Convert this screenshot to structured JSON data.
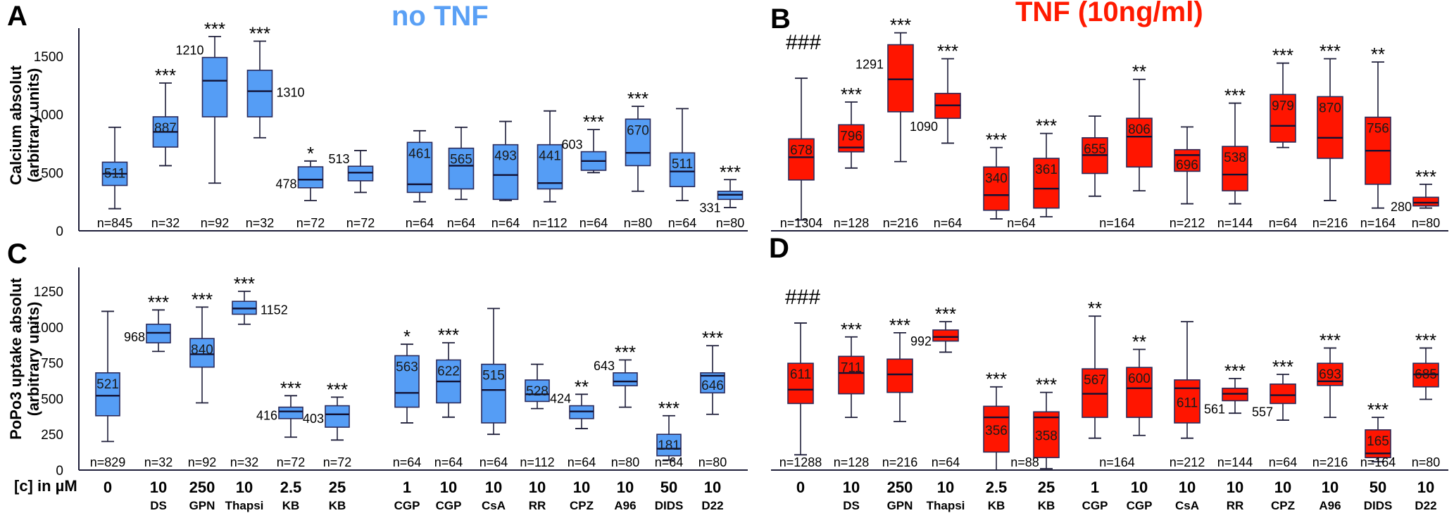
{
  "figure": {
    "condition_titles": [
      {
        "text": "no TNF",
        "color": "#5aa0f5"
      },
      {
        "text": "TNF (10ng/ml)",
        "color": "#ff1a00"
      }
    ],
    "x_axis_row_label": "[c] in µM",
    "groups": [
      {
        "conc": "0",
        "drug": ""
      },
      {
        "conc": "10",
        "drug": "DS"
      },
      {
        "conc": "250",
        "drug": "GPN"
      },
      {
        "conc": "10",
        "drug": "Thapsi"
      },
      {
        "conc": "2.5",
        "drug": "KB"
      },
      {
        "conc": "25",
        "drug": "KB"
      },
      {
        "conc": "1",
        "drug": "CGP"
      },
      {
        "conc": "10",
        "drug": "CGP"
      },
      {
        "conc": "10",
        "drug": "CsA"
      },
      {
        "conc": "10",
        "drug": "RR"
      },
      {
        "conc": "10",
        "drug": "CPZ"
      },
      {
        "conc": "10",
        "drug": "A96"
      },
      {
        "conc": "50",
        "drug": "DIDS"
      },
      {
        "conc": "10",
        "drug": "D22"
      }
    ],
    "colors": {
      "no_tnf_box": "#559df5",
      "tnf_box": "#ff1500",
      "whisker": "#1f1f3a",
      "median": "#111133"
    }
  },
  "chart_data": [
    {
      "panel": "A",
      "type": "boxplot",
      "condition": "no TNF",
      "ylabel": [
        "Calcium absolut",
        "(arbitrary units)"
      ],
      "ylim": [
        0,
        1700
      ],
      "yticks": [
        0,
        500,
        1000,
        1500
      ],
      "show_yaxis": true,
      "color": "#559df5",
      "boxes": [
        {
          "q1": 390,
          "median": 490,
          "q3": 590,
          "whislo": 190,
          "whishi": 890,
          "label": "511",
          "label_pos": "inside",
          "n": "n=845",
          "sig": ""
        },
        {
          "q1": 720,
          "median": 850,
          "q3": 980,
          "whislo": 560,
          "whishi": 1270,
          "label": "887",
          "label_pos": "inside",
          "n": "n=32",
          "sig": "***"
        },
        {
          "q1": 980,
          "median": 1290,
          "q3": 1490,
          "whislo": 410,
          "whishi": 1670,
          "label": "1210",
          "label_pos": "left-top",
          "n": "n=92",
          "sig": "***"
        },
        {
          "q1": 980,
          "median": 1200,
          "q3": 1380,
          "whislo": 800,
          "whishi": 1630,
          "label": "1310",
          "label_pos": "right",
          "n": "n=32",
          "sig": "***"
        },
        {
          "q1": 370,
          "median": 440,
          "q3": 550,
          "whislo": 260,
          "whishi": 600,
          "label": "478",
          "label_pos": "left",
          "n": "n=72",
          "sig": "*"
        },
        {
          "q1": 430,
          "median": 500,
          "q3": 555,
          "whislo": 330,
          "whishi": 690,
          "label": "513",
          "label_pos": "left-top",
          "n": "n=72",
          "sig": ""
        },
        {
          "q1": 330,
          "median": 400,
          "q3": 760,
          "whislo": 250,
          "whishi": 860,
          "label": "461",
          "label_pos": "inside",
          "n": "n=64",
          "sig": ""
        },
        {
          "q1": 360,
          "median": 560,
          "q3": 710,
          "whislo": 270,
          "whishi": 890,
          "label": "565",
          "label_pos": "inside",
          "n": "n=64",
          "sig": ""
        },
        {
          "q1": 270,
          "median": 480,
          "q3": 740,
          "whislo": 260,
          "whishi": 940,
          "label": "493",
          "label_pos": "inside",
          "n": "n=64",
          "sig": ""
        },
        {
          "q1": 360,
          "median": 410,
          "q3": 740,
          "whislo": 250,
          "whishi": 1030,
          "label": "441",
          "label_pos": "inside",
          "n": "n=112",
          "sig": ""
        },
        {
          "q1": 520,
          "median": 600,
          "q3": 680,
          "whislo": 500,
          "whishi": 870,
          "label": "603",
          "label_pos": "left-top",
          "n": "n=64",
          "sig": "***"
        },
        {
          "q1": 560,
          "median": 670,
          "q3": 960,
          "whislo": 340,
          "whishi": 1070,
          "label": "670",
          "label_pos": "inside",
          "n": "n=80",
          "sig": "***"
        },
        {
          "q1": 380,
          "median": 510,
          "q3": 670,
          "whislo": 260,
          "whishi": 1050,
          "label": "511",
          "label_pos": "inside",
          "n": "n=64",
          "sig": ""
        },
        {
          "q1": 270,
          "median": 310,
          "q3": 340,
          "whislo": 200,
          "whishi": 440,
          "label": "331",
          "label_pos": "left-low",
          "n": "n=80",
          "sig": "***"
        }
      ]
    },
    {
      "panel": "B",
      "type": "boxplot",
      "condition": "TNF (10ng/ml)",
      "ylim": [
        0,
        1700
      ],
      "show_yaxis": false,
      "header_mark": "###",
      "color": "#ff1500",
      "boxes": [
        {
          "q1": 470,
          "median": 680,
          "q3": 850,
          "whislo": 100,
          "whishi": 1410,
          "label": "678",
          "label_pos": "inside",
          "n": "n=1304",
          "sig": ""
        },
        {
          "q1": 730,
          "median": 770,
          "q3": 980,
          "whislo": 580,
          "whishi": 1190,
          "label": "796",
          "label_pos": "inside",
          "n": "n=128",
          "sig": "***"
        },
        {
          "q1": 1100,
          "median": 1400,
          "q3": 1720,
          "whislo": 640,
          "whishi": 1830,
          "label": "1291",
          "label_pos": "left-high",
          "n": "n=216",
          "sig": "***"
        },
        {
          "q1": 1040,
          "median": 1160,
          "q3": 1270,
          "whislo": 810,
          "whishi": 1590,
          "label": "1090",
          "label_pos": "left-low",
          "n": "n=64",
          "sig": "***"
        },
        {
          "q1": 190,
          "median": 330,
          "q3": 590,
          "whislo": 110,
          "whishi": 770,
          "label": "340",
          "label_pos": "inside",
          "n": "",
          "sig": "***"
        },
        {
          "q1": 210,
          "median": 390,
          "q3": 670,
          "whislo": 130,
          "whishi": 900,
          "label": "361",
          "label_pos": "inside",
          "n": "n=64",
          "sig": "***"
        },
        {
          "q1": 530,
          "median": 700,
          "q3": 860,
          "whislo": 320,
          "whishi": 1060,
          "label": "655",
          "label_pos": "inside",
          "n": "",
          "sig": ""
        },
        {
          "q1": 590,
          "median": 870,
          "q3": 1040,
          "whislo": 370,
          "whishi": 1400,
          "label": "806",
          "label_pos": "inside",
          "n": "n=164",
          "sig": "**"
        },
        {
          "q1": 550,
          "median": 700,
          "q3": 750,
          "whislo": 250,
          "whishi": 960,
          "label": "696",
          "label_pos": "inside-low",
          "n": "n=212",
          "sig": ""
        },
        {
          "q1": 370,
          "median": 520,
          "q3": 780,
          "whislo": 250,
          "whishi": 1180,
          "label": "538",
          "label_pos": "inside",
          "n": "n=144",
          "sig": "***"
        },
        {
          "q1": 820,
          "median": 970,
          "q3": 1260,
          "whislo": 770,
          "whishi": 1550,
          "label": "979",
          "label_pos": "inside",
          "n": "n=64",
          "sig": "***"
        },
        {
          "q1": 670,
          "median": 860,
          "q3": 1240,
          "whislo": 280,
          "whishi": 1590,
          "label": "870",
          "label_pos": "inside",
          "n": "n=216",
          "sig": "***"
        },
        {
          "q1": 430,
          "median": 740,
          "q3": 1050,
          "whislo": 210,
          "whishi": 1560,
          "label": "756",
          "label_pos": "inside",
          "n": "n=164",
          "sig": "**"
        },
        {
          "q1": 230,
          "median": 260,
          "q3": 310,
          "whislo": 210,
          "whishi": 430,
          "label": "280",
          "label_pos": "left",
          "n": "n=80",
          "sig": "***"
        }
      ]
    },
    {
      "panel": "C",
      "type": "boxplot",
      "condition": "no TNF",
      "ylabel": [
        "PoPo3 uptake  absolut",
        "(arbitrary units)"
      ],
      "ylim": [
        0,
        1400
      ],
      "yticks": [
        0,
        250,
        500,
        750,
        1000,
        1250
      ],
      "show_yaxis": true,
      "color": "#559df5",
      "boxes": [
        {
          "q1": 380,
          "median": 520,
          "q3": 680,
          "whislo": 200,
          "whishi": 1110,
          "label": "521",
          "label_pos": "inside",
          "n": "n=829",
          "sig": ""
        },
        {
          "q1": 890,
          "median": 960,
          "q3": 1020,
          "whislo": 830,
          "whishi": 1120,
          "label": "968",
          "label_pos": "left",
          "n": "n=32",
          "sig": "***"
        },
        {
          "q1": 720,
          "median": 810,
          "q3": 920,
          "whislo": 470,
          "whishi": 1140,
          "label": "840",
          "label_pos": "inside",
          "n": "n=92",
          "sig": "***"
        },
        {
          "q1": 1090,
          "median": 1130,
          "q3": 1180,
          "whislo": 1020,
          "whishi": 1250,
          "label": "1152",
          "label_pos": "right",
          "n": "n=32",
          "sig": "***"
        },
        {
          "q1": 360,
          "median": 410,
          "q3": 440,
          "whislo": 230,
          "whishi": 520,
          "label": "416",
          "label_pos": "left",
          "n": "n=72",
          "sig": "***"
        },
        {
          "q1": 300,
          "median": 390,
          "q3": 450,
          "whislo": 210,
          "whishi": 510,
          "label": "403",
          "label_pos": "left",
          "n": "n=72",
          "sig": "***"
        },
        {
          "q1": 440,
          "median": 540,
          "q3": 800,
          "whislo": 330,
          "whishi": 880,
          "label": "563",
          "label_pos": "inside",
          "n": "n=64",
          "sig": "*"
        },
        {
          "q1": 470,
          "median": 620,
          "q3": 770,
          "whislo": 370,
          "whishi": 890,
          "label": "622",
          "label_pos": "inside",
          "n": "n=64",
          "sig": "***"
        },
        {
          "q1": 330,
          "median": 560,
          "q3": 740,
          "whislo": 250,
          "whishi": 1130,
          "label": "515",
          "label_pos": "inside",
          "n": "n=64",
          "sig": ""
        },
        {
          "q1": 480,
          "median": 530,
          "q3": 630,
          "whislo": 430,
          "whishi": 740,
          "label": "528",
          "label_pos": "inside",
          "n": "n=112",
          "sig": ""
        },
        {
          "q1": 360,
          "median": 410,
          "q3": 450,
          "whislo": 290,
          "whishi": 530,
          "label": "424",
          "label_pos": "left-top",
          "n": "n=64",
          "sig": "**"
        },
        {
          "q1": 590,
          "median": 620,
          "q3": 680,
          "whislo": 440,
          "whishi": 770,
          "label": "643",
          "label_pos": "left-top",
          "n": "n=80",
          "sig": "***"
        },
        {
          "q1": 100,
          "median": 150,
          "q3": 250,
          "whislo": 70,
          "whishi": 380,
          "label": "181",
          "label_pos": "inside",
          "n": "n=64",
          "sig": "***"
        },
        {
          "q1": 540,
          "median": 660,
          "q3": 680,
          "whislo": 390,
          "whishi": 870,
          "label": "646",
          "label_pos": "inside-low",
          "n": "n=80",
          "sig": "***"
        }
      ]
    },
    {
      "panel": "D",
      "type": "boxplot",
      "condition": "TNF (10ng/ml)",
      "ylim": [
        0,
        1400
      ],
      "show_yaxis": false,
      "header_mark": "###",
      "color": "#ff1500",
      "boxes": [
        {
          "q1": 480,
          "median": 580,
          "q3": 770,
          "whislo": 110,
          "whishi": 1060,
          "label": "611",
          "label_pos": "inside",
          "n": "n=1288",
          "sig": ""
        },
        {
          "q1": 550,
          "median": 700,
          "q3": 820,
          "whislo": 380,
          "whishi": 960,
          "label": "711",
          "label_pos": "inside",
          "n": "n=128",
          "sig": "***"
        },
        {
          "q1": 560,
          "median": 690,
          "q3": 800,
          "whislo": 350,
          "whishi": 990,
          "label": "",
          "label_pos": "inside",
          "n": "n=216",
          "sig": "***"
        },
        {
          "q1": 930,
          "median": 960,
          "q3": 1010,
          "whislo": 850,
          "whishi": 1070,
          "label": "992",
          "label_pos": "left",
          "n": "n=64",
          "sig": "***"
        },
        {
          "q1": 130,
          "median": 380,
          "q3": 460,
          "whislo": 0,
          "whishi": 600,
          "label": "356",
          "label_pos": "inside-low",
          "n": "",
          "sig": "***"
        },
        {
          "q1": 90,
          "median": 380,
          "q3": 420,
          "whislo": 10,
          "whishi": 560,
          "label": "358",
          "label_pos": "inside-low",
          "n": "n=88",
          "sig": "***"
        },
        {
          "q1": 380,
          "median": 550,
          "q3": 730,
          "whislo": 230,
          "whishi": 1110,
          "label": "567",
          "label_pos": "inside",
          "n": "",
          "sig": "**"
        },
        {
          "q1": 380,
          "median": 590,
          "q3": 740,
          "whislo": 250,
          "whishi": 870,
          "label": "600",
          "label_pos": "inside",
          "n": "n=164",
          "sig": "**"
        },
        {
          "q1": 340,
          "median": 590,
          "q3": 650,
          "whislo": 230,
          "whishi": 1070,
          "label": "611",
          "label_pos": "inside-low",
          "n": "n=212",
          "sig": ""
        },
        {
          "q1": 500,
          "median": 550,
          "q3": 590,
          "whislo": 410,
          "whishi": 660,
          "label": "561",
          "label_pos": "left-low",
          "n": "n=144",
          "sig": "***"
        },
        {
          "q1": 480,
          "median": 540,
          "q3": 620,
          "whislo": 360,
          "whishi": 690,
          "label": "557",
          "label_pos": "left-low",
          "n": "n=64",
          "sig": "***"
        },
        {
          "q1": 610,
          "median": 640,
          "q3": 770,
          "whislo": 380,
          "whishi": 880,
          "label": "693",
          "label_pos": "inside",
          "n": "n=216",
          "sig": "***"
        },
        {
          "q1": 90,
          "median": 120,
          "q3": 290,
          "whislo": 60,
          "whishi": 380,
          "label": "165",
          "label_pos": "inside",
          "n": "n=164",
          "sig": "***"
        },
        {
          "q1": 600,
          "median": 690,
          "q3": 770,
          "whislo": 510,
          "whishi": 880,
          "label": "685",
          "label_pos": "inside",
          "n": "n=80",
          "sig": "***"
        }
      ]
    }
  ]
}
